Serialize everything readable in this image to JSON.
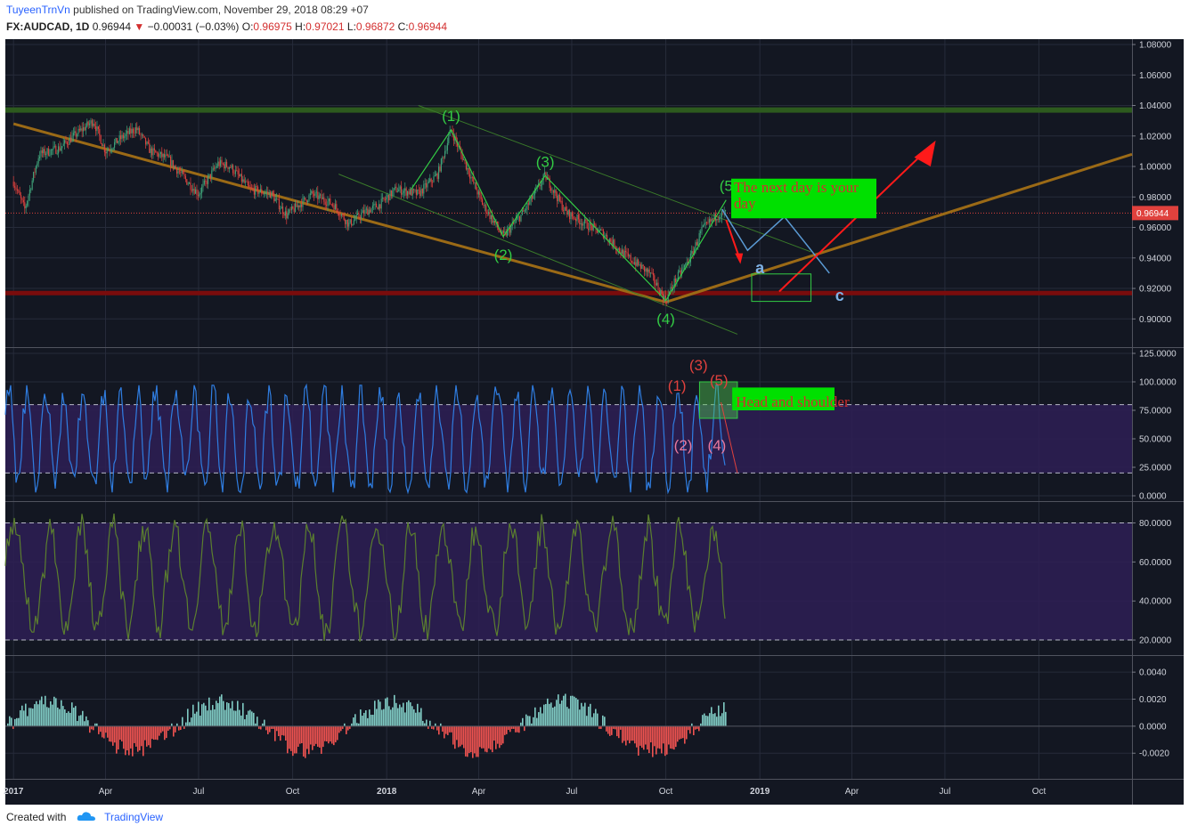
{
  "header": {
    "user": "TuyeenTrnVn",
    "published": "published on TradingView.com, November 29, 2018 08:29 +07",
    "symbol": "FX:AUDCAD, 1D",
    "last": "0.96944",
    "arrow": "▼",
    "change": "−0.00031 (−0.03%)",
    "o_label": "O:",
    "o": "0.96975",
    "h_label": "H:",
    "h": "0.97021",
    "l_label": "L:",
    "l": "0.96872",
    "c_label": "C:",
    "c": "0.96944"
  },
  "footer": {
    "created": "Created with",
    "brand": "TradingView"
  },
  "colors": {
    "bg": "#131722",
    "grid": "#262b3a",
    "up": "#3fa37a",
    "down": "#e0413d",
    "trend": "#9b6a16",
    "resistance": "#2d5a1e",
    "support": "#7a0c0c",
    "elliott": "#33cc44",
    "rsi": "#2f7de1",
    "stoch": "#5b7f2e",
    "band": "#2e1f55",
    "histUp": "#80cbc4",
    "histDown": "#ef5350"
  },
  "chart_data": [
    {
      "type": "candlestick",
      "symbol": "FX:AUDCAD",
      "interval": "1D",
      "x_ticks": [
        "2017",
        "Apr",
        "Jul",
        "Oct",
        "2018",
        "Apr",
        "Jul",
        "Oct",
        "2019",
        "Apr",
        "Jul",
        "Oct"
      ],
      "y_ticks": [
        "1.08000",
        "1.06000",
        "1.04000",
        "1.02000",
        "1.00000",
        "0.98000",
        "0.96000",
        "0.94000",
        "0.92000",
        "0.90000"
      ],
      "ylim": [
        0.885,
        1.08
      ],
      "last_price": "0.96944",
      "close_path": [
        [
          "2017-01-01",
          0.99
        ],
        [
          "2017-01-12",
          0.972
        ],
        [
          "2017-01-26",
          1.008
        ],
        [
          "2017-02-15",
          1.012
        ],
        [
          "2017-03-01",
          1.02
        ],
        [
          "2017-03-20",
          1.03
        ],
        [
          "2017-04-01",
          1.01
        ],
        [
          "2017-04-15",
          1.018
        ],
        [
          "2017-05-01",
          1.025
        ],
        [
          "2017-05-15",
          1.01
        ],
        [
          "2017-06-01",
          1.005
        ],
        [
          "2017-06-20",
          0.99
        ],
        [
          "2017-07-01",
          0.982
        ],
        [
          "2017-07-20",
          1.002
        ],
        [
          "2017-08-01",
          1.0
        ],
        [
          "2017-08-20",
          0.985
        ],
        [
          "2017-09-10",
          0.982
        ],
        [
          "2017-09-25",
          0.968
        ],
        [
          "2017-10-20",
          0.982
        ],
        [
          "2017-11-10",
          0.975
        ],
        [
          "2017-11-25",
          0.962
        ],
        [
          "2017-12-10",
          0.97
        ],
        [
          "2017-12-25",
          0.975
        ],
        [
          "2018-01-10",
          0.985
        ],
        [
          "2018-02-01",
          0.982
        ],
        [
          "2018-02-20",
          0.995
        ],
        [
          "2018-03-05",
          1.024
        ],
        [
          "2018-03-20",
          1.0
        ],
        [
          "2018-04-05",
          0.975
        ],
        [
          "2018-04-25",
          0.954
        ],
        [
          "2018-05-15",
          0.97
        ],
        [
          "2018-06-05",
          0.994
        ],
        [
          "2018-06-25",
          0.97
        ],
        [
          "2018-07-15",
          0.962
        ],
        [
          "2018-08-01",
          0.956
        ],
        [
          "2018-08-20",
          0.943
        ],
        [
          "2018-09-15",
          0.93
        ],
        [
          "2018-10-01",
          0.912
        ],
        [
          "2018-10-10",
          0.925
        ],
        [
          "2018-10-25",
          0.94
        ],
        [
          "2018-11-05",
          0.958
        ],
        [
          "2018-11-20",
          0.968
        ],
        [
          "2018-11-29",
          0.96944
        ]
      ],
      "horizontal_lines": [
        {
          "name": "resistance",
          "value": 1.037
        },
        {
          "name": "support",
          "value": 0.917
        },
        {
          "name": "last-price",
          "value": 0.96944
        }
      ],
      "trendlines": [
        {
          "name": "falling-trendline",
          "from": [
            "2017-01-01",
            1.028
          ],
          "to": [
            "2018-10-01",
            0.911
          ]
        },
        {
          "name": "rising-trendline",
          "from": [
            "2018-10-01",
            0.911
          ],
          "to": [
            "2019-12-31",
            1.008
          ]
        }
      ],
      "elliott_waves": [
        {
          "label": "(1)",
          "date": "2018-03-05",
          "value": 1.024
        },
        {
          "label": "(2)",
          "date": "2018-04-25",
          "value": 0.954
        },
        {
          "label": "(3)",
          "date": "2018-06-05",
          "value": 0.994
        },
        {
          "label": "(4)",
          "date": "2018-10-01",
          "value": 0.912
        },
        {
          "label": "(5",
          "date": "2018-11-29",
          "value": 0.978
        }
      ],
      "correction_labels": [
        {
          "label": "a"
        },
        {
          "label": "c"
        }
      ],
      "annotations": [
        "The next day is your day"
      ]
    },
    {
      "type": "line",
      "name": "oscillator-1",
      "y_ticks": [
        "125.0000",
        "100.0000",
        "75.0000",
        "50.0000",
        "25.0000",
        "0.0000"
      ],
      "ylim": [
        0,
        125
      ],
      "band": [
        20,
        80
      ],
      "wave_labels": [
        "(1)",
        "(2)",
        "(3)",
        "(4)",
        "(5)"
      ],
      "annotation": "Head and shoulder"
    },
    {
      "type": "line",
      "name": "oscillator-2",
      "y_ticks": [
        "80.0000",
        "60.0000",
        "40.0000",
        "20.0000"
      ],
      "ylim": [
        15,
        88
      ],
      "band": [
        20,
        80
      ]
    },
    {
      "type": "bar",
      "name": "histogram",
      "y_ticks": [
        "0.0040",
        "0.0020",
        "0.0000",
        "-0.0020"
      ],
      "ylim": [
        -0.0035,
        0.0048
      ]
    }
  ]
}
